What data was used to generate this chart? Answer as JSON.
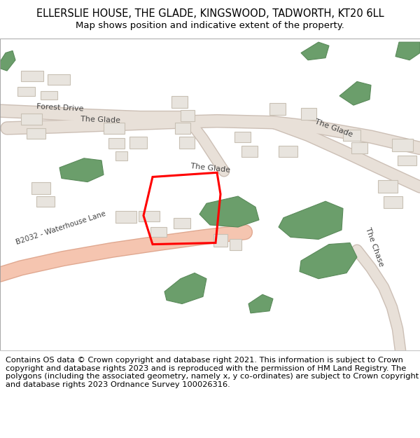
{
  "title": "ELLERSLIE HOUSE, THE GLADE, KINGSWOOD, TADWORTH, KT20 6LL",
  "subtitle": "Map shows position and indicative extent of the property.",
  "copyright_text": "Contains OS data © Crown copyright and database right 2021. This information is subject to Crown copyright and database rights 2023 and is reproduced with the permission of HM Land Registry. The polygons (including the associated geometry, namely x, y co-ordinates) are subject to Crown copyright and database rights 2023 Ordnance Survey 100026316.",
  "bg_color": "#ffffff",
  "map_bg": "#ffffff",
  "road_color": "#e8e0d8",
  "road_stroke": "#ccbfb5",
  "b2032_color": "#f5c5b0",
  "b2032_stroke": "#e0a890",
  "building_fill": "#e8e4de",
  "building_stroke": "#c8c0b4",
  "green_fill": "#6b9e6b",
  "green_stroke": "#5a8a5a",
  "property_color": "#ff0000",
  "road_label_color": "#444444",
  "title_color": "#000000",
  "title_fontsize": 10.5,
  "subtitle_fontsize": 9.5,
  "copyright_fontsize": 8.2,
  "figsize": [
    6.0,
    6.25
  ],
  "dpi": 100
}
